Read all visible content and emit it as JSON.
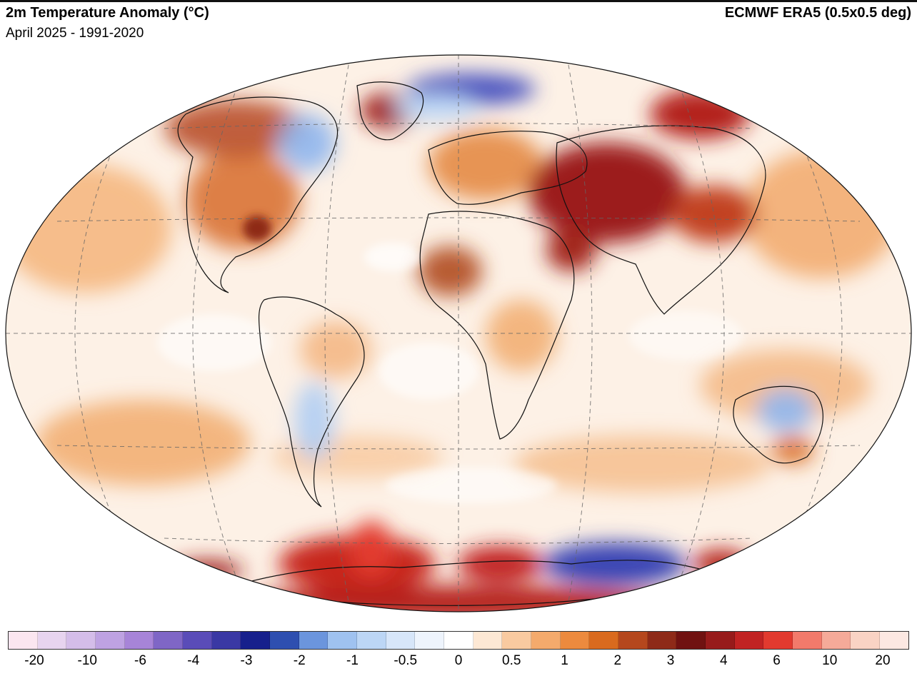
{
  "header": {
    "title": "2m Temperature Anomaly (°C)",
    "subtitle": "April 2025 - 1991-2020",
    "source": "ECMWF ERA5 (0.5x0.5 deg)"
  },
  "map": {
    "projection": "Winkel Tripel",
    "graticule": "dashed"
  },
  "colorbar": {
    "colors": [
      "#fbe6f0",
      "#e7d4ef",
      "#d4bde9",
      "#bea2e2",
      "#a784d8",
      "#7f66c6",
      "#5a4cb8",
      "#3a38a4",
      "#17208c",
      "#2e4fb0",
      "#6b95dd",
      "#9fc2f0",
      "#bcd6f5",
      "#d7e6f9",
      "#eef4fc",
      "#ffffff",
      "#fde8d4",
      "#f9caa0",
      "#f4aa6c",
      "#ec8a3e",
      "#d96a1e",
      "#b5471d",
      "#8e2a18",
      "#701211",
      "#971b1b",
      "#c12323",
      "#e23a2f",
      "#f27a6b",
      "#f5aa99",
      "#f9d3c4",
      "#fce8e2"
    ],
    "tick_labels": [
      "-20",
      "-10",
      "-6",
      "-4",
      "-3",
      "-2",
      "-1",
      "-0.5",
      "0",
      "0.5",
      "1",
      "2",
      "3",
      "4",
      "6",
      "10",
      "20"
    ]
  }
}
